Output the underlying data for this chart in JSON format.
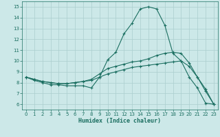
{
  "xlabel": "Humidex (Indice chaleur)",
  "bg_color": "#cce8e8",
  "grid_color": "#aacece",
  "line_color": "#1a6e60",
  "xlim": [
    -0.5,
    23.5
  ],
  "ylim": [
    5.5,
    15.5
  ],
  "xticks": [
    0,
    1,
    2,
    3,
    4,
    5,
    6,
    7,
    8,
    9,
    10,
    11,
    12,
    13,
    14,
    15,
    16,
    17,
    18,
    19,
    20,
    21,
    22,
    23
  ],
  "yticks": [
    6,
    7,
    8,
    9,
    10,
    11,
    12,
    13,
    14,
    15
  ],
  "line1_x": [
    0,
    1,
    2,
    3,
    4,
    5,
    6,
    7,
    8,
    9,
    10,
    11,
    12,
    13,
    14,
    15,
    16,
    17,
    18,
    19,
    20,
    21,
    22,
    23
  ],
  "line1_y": [
    8.5,
    8.2,
    8.0,
    7.8,
    7.8,
    7.7,
    7.7,
    7.7,
    7.5,
    8.5,
    10.1,
    10.8,
    12.5,
    13.5,
    14.8,
    15.0,
    14.8,
    13.3,
    10.7,
    10.0,
    8.5,
    7.5,
    6.1,
    6.0
  ],
  "line2_x": [
    0,
    1,
    2,
    3,
    4,
    5,
    6,
    7,
    8,
    9,
    10,
    11,
    12,
    13,
    14,
    15,
    16,
    17,
    18,
    19,
    20,
    21,
    22,
    23
  ],
  "line2_y": [
    8.5,
    8.3,
    8.1,
    8.0,
    7.9,
    7.9,
    8.0,
    8.1,
    8.2,
    8.5,
    8.8,
    9.0,
    9.2,
    9.4,
    9.5,
    9.6,
    9.7,
    9.8,
    9.9,
    10.0,
    9.5,
    8.5,
    7.4,
    6.0
  ],
  "line3_x": [
    0,
    1,
    2,
    3,
    4,
    5,
    6,
    7,
    8,
    9,
    10,
    11,
    12,
    13,
    14,
    15,
    16,
    17,
    18,
    19,
    20,
    21,
    22,
    23
  ],
  "line3_y": [
    8.5,
    8.3,
    8.1,
    8.0,
    7.9,
    7.9,
    8.0,
    8.1,
    8.3,
    8.8,
    9.3,
    9.5,
    9.7,
    9.9,
    10.0,
    10.2,
    10.5,
    10.7,
    10.8,
    10.7,
    9.8,
    8.5,
    7.2,
    6.0
  ]
}
